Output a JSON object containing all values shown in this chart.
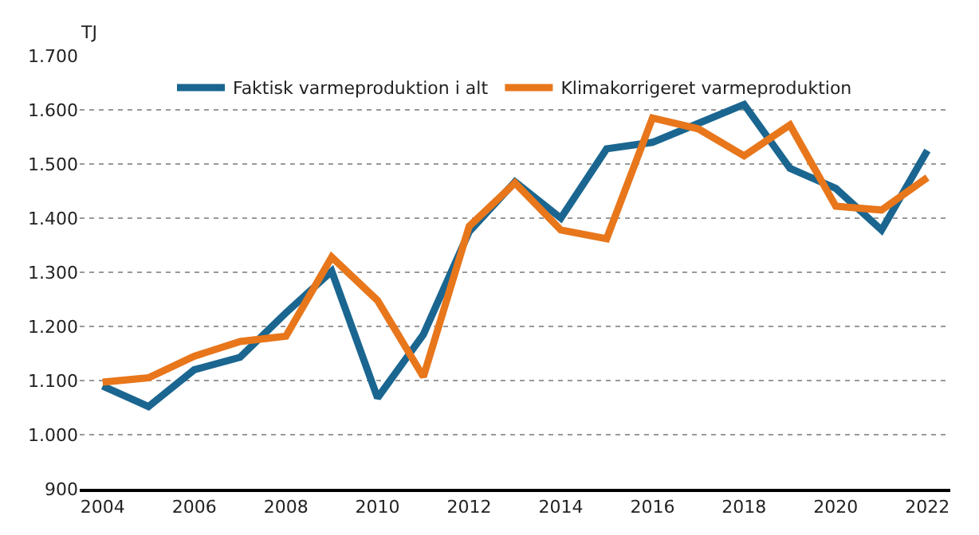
{
  "chart_data": {
    "type": "line",
    "ylabel": "TJ",
    "categories": [
      "2004",
      null,
      "2006",
      null,
      "2008",
      null,
      "2010",
      null,
      "2012",
      null,
      "2014",
      null,
      "2016",
      null,
      "2018",
      null,
      "2020",
      null,
      "2022"
    ],
    "series": [
      {
        "name": "Faktisk varmeproduktion i alt",
        "color": "#1a6690",
        "values": [
          1090,
          1052,
          1120,
          1143,
          1225,
          1302,
          1068,
          1185,
          1375,
          1467,
          1400,
          1528,
          1540,
          1575,
          1610,
          1492,
          1455,
          1378,
          1525
        ]
      },
      {
        "name": "Klimakorrigeret varmeproduktion",
        "color": "#e8761b",
        "values": [
          1097,
          1105,
          1145,
          1172,
          1182,
          1328,
          1248,
          1107,
          1385,
          1465,
          1378,
          1362,
          1585,
          1565,
          1515,
          1572,
          1422,
          1415,
          1475
        ]
      }
    ],
    "ylim": [
      900,
      1700
    ],
    "yticks": [
      {
        "value": 900,
        "label": "900"
      },
      {
        "value": 1000,
        "label": "1.000"
      },
      {
        "value": 1100,
        "label": "1.100"
      },
      {
        "value": 1200,
        "label": "1.200"
      },
      {
        "value": 1300,
        "label": "1.300"
      },
      {
        "value": 1400,
        "label": "1.400"
      },
      {
        "value": 1500,
        "label": "1.500"
      },
      {
        "value": 1600,
        "label": "1.600"
      },
      {
        "value": 1700,
        "label": "1.700"
      }
    ],
    "grid": "y",
    "legend": "top",
    "marker": "none",
    "line_style": "solid"
  }
}
